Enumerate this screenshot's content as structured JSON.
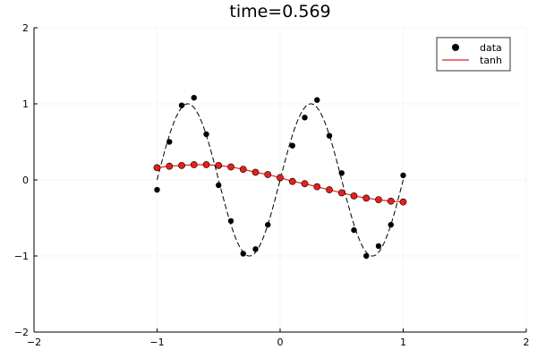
{
  "chart_data": {
    "type": "scatter",
    "title": "time=0.569",
    "xlabel": "",
    "ylabel": "",
    "xlim": [
      -2,
      2
    ],
    "ylim": [
      -2,
      2
    ],
    "xticks": [
      -2,
      -1,
      0,
      1,
      2
    ],
    "yticks": [
      -2,
      -1,
      0,
      1,
      2
    ],
    "xtick_labels": [
      "−2",
      "−1",
      "0",
      "1",
      "2"
    ],
    "ytick_labels": [
      "−2",
      "−1",
      "0",
      "1",
      "2"
    ],
    "grid": true,
    "legend_position": "top-right",
    "legend": [
      {
        "label": "data",
        "marker": "circle",
        "color": "#000000"
      },
      {
        "label": "tanh",
        "marker": "line",
        "color": "#e8201a"
      }
    ],
    "series": [
      {
        "name": "data",
        "kind": "scatter",
        "color": "#000000",
        "x": [
          -1.0,
          -0.9,
          -0.8,
          -0.7,
          -0.6,
          -0.5,
          -0.4,
          -0.3,
          -0.2,
          -0.1,
          0.0,
          0.1,
          0.2,
          0.3,
          0.4,
          0.5,
          0.6,
          0.7,
          0.8,
          0.9,
          1.0
        ],
        "y": [
          -0.13,
          0.5,
          0.98,
          1.08,
          0.6,
          -0.07,
          -0.54,
          -0.97,
          -0.91,
          -0.59,
          0.02,
          0.45,
          0.82,
          1.05,
          0.58,
          0.09,
          -0.66,
          -1.0,
          -0.87,
          -0.59,
          0.06
        ]
      },
      {
        "name": "tanh",
        "kind": "line+markers",
        "color": "#e8201a",
        "x": [
          -1.0,
          -0.9,
          -0.8,
          -0.7,
          -0.6,
          -0.5,
          -0.4,
          -0.3,
          -0.2,
          -0.1,
          0.0,
          0.1,
          0.2,
          0.3,
          0.4,
          0.5,
          0.6,
          0.7,
          0.8,
          0.9,
          1.0
        ],
        "y": [
          0.16,
          0.18,
          0.19,
          0.2,
          0.2,
          0.19,
          0.17,
          0.14,
          0.1,
          0.07,
          0.03,
          -0.02,
          -0.05,
          -0.09,
          -0.13,
          -0.17,
          -0.21,
          -0.24,
          -0.26,
          -0.28,
          -0.29
        ]
      },
      {
        "name": "",
        "kind": "dashed-curve",
        "color": "#000000",
        "function": "sin(2*pi*x)"
      }
    ]
  }
}
